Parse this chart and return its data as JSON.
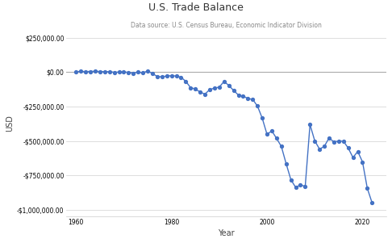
{
  "title": "U.S. Trade Balance",
  "subtitle": "Data source: U.S. Census Bureau, Economic Indicator Division",
  "xlabel": "Year",
  "ylabel": "USD",
  "line_color": "#4472C4",
  "marker_color": "#4472C4",
  "background_color": "#ffffff",
  "grid_color": "#d0d0d0",
  "zero_line_color": "#aaaaaa",
  "years": [
    1960,
    1961,
    1962,
    1963,
    1964,
    1965,
    1966,
    1967,
    1968,
    1969,
    1970,
    1971,
    1972,
    1973,
    1974,
    1975,
    1976,
    1977,
    1978,
    1979,
    1980,
    1981,
    1982,
    1983,
    1984,
    1985,
    1986,
    1987,
    1988,
    1989,
    1990,
    1991,
    1992,
    1993,
    1994,
    1995,
    1996,
    1997,
    1998,
    1999,
    2000,
    2001,
    2002,
    2003,
    2004,
    2005,
    2006,
    2007,
    2008,
    2009,
    2010,
    2011,
    2012,
    2013,
    2014,
    2015,
    2016,
    2017,
    2018,
    2019,
    2020,
    2021,
    2022
  ],
  "values": [
    3508,
    5571,
    4521,
    5224,
    6801,
    4951,
    3817,
    3800,
    -633,
    607,
    2603,
    -2260,
    -6416,
    911,
    -5505,
    8903,
    -9482,
    -31091,
    -33947,
    -27568,
    -25278,
    -28023,
    -36440,
    -67102,
    -112522,
    -122173,
    -145081,
    -159557,
    -126654,
    -115651,
    -109030,
    -66724,
    -96897,
    -132451,
    -165831,
    -174170,
    -191269,
    -198071,
    -246668,
    -334976,
    -452418,
    -427219,
    -481964,
    -540366,
    -665373,
    -782743,
    -838271,
    -820373,
    -830977,
    -380951,
    -500041,
    -559766,
    -540050,
    -477571,
    -508068,
    -500381,
    -502329,
    -551947,
    -621048,
    -576874,
    -653138,
    -845065,
    -950554
  ],
  "ylim": [
    -1050000,
    310000
  ],
  "xlim": [
    1958,
    2025
  ],
  "yticks": [
    250000,
    0,
    -250000,
    -500000,
    -750000,
    -1000000
  ],
  "xticks": [
    1960,
    1980,
    2000,
    2020
  ]
}
